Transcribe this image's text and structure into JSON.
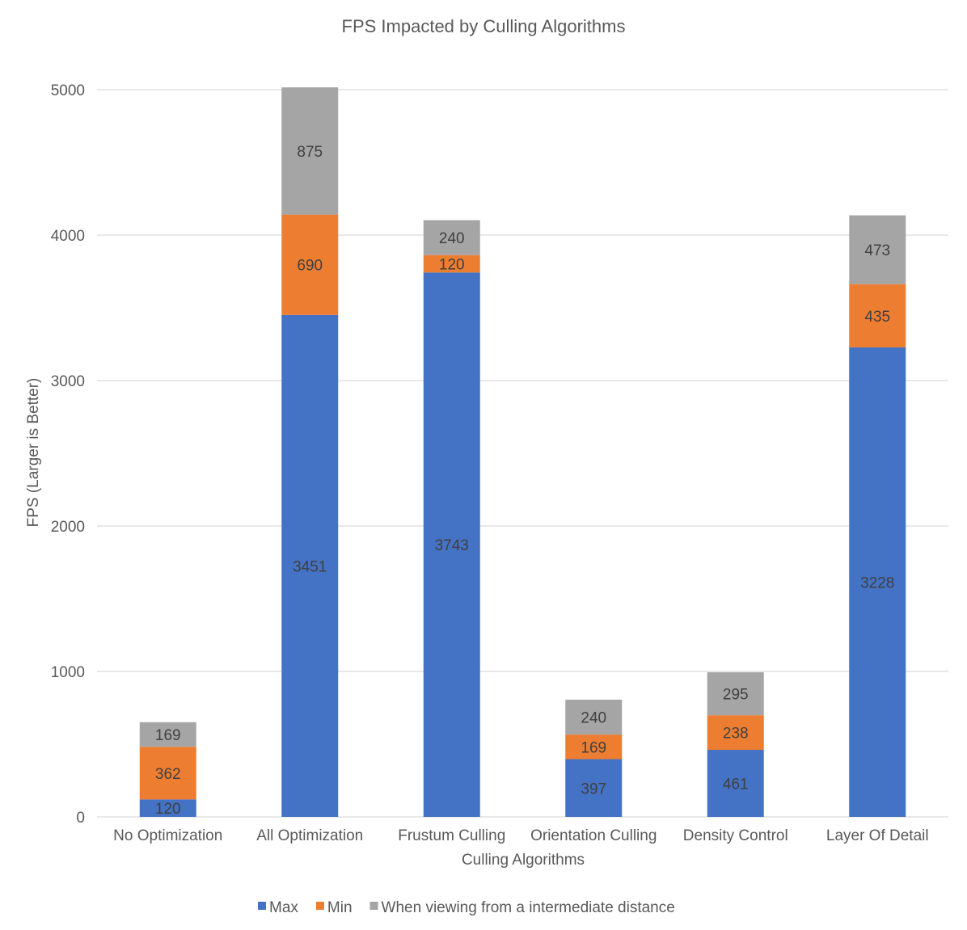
{
  "chart_data": {
    "type": "bar",
    "stacked": true,
    "title": "FPS Impacted by Culling Algorithms",
    "xlabel": "Culling Algorithms",
    "ylabel": "FPS (Larger is Better)",
    "ylim": [
      0,
      5000
    ],
    "yticks": [
      0,
      1000,
      2000,
      3000,
      4000,
      5000
    ],
    "grid": true,
    "legend_position": "bottom",
    "categories": [
      "No Optimization",
      "All Optimization",
      "Frustum Culling",
      "Orientation Culling",
      "Density Control",
      "Layer Of Detail"
    ],
    "series": [
      {
        "name": "Max",
        "color": "#4472c4",
        "values": [
          120,
          3451,
          3743,
          397,
          461,
          3228
        ]
      },
      {
        "name": "Min",
        "color": "#ed7d31",
        "values": [
          362,
          690,
          120,
          169,
          238,
          435
        ]
      },
      {
        "name": "When viewing from a intermediate distance",
        "color": "#a5a5a5",
        "values": [
          169,
          875,
          240,
          240,
          295,
          473
        ]
      }
    ]
  }
}
